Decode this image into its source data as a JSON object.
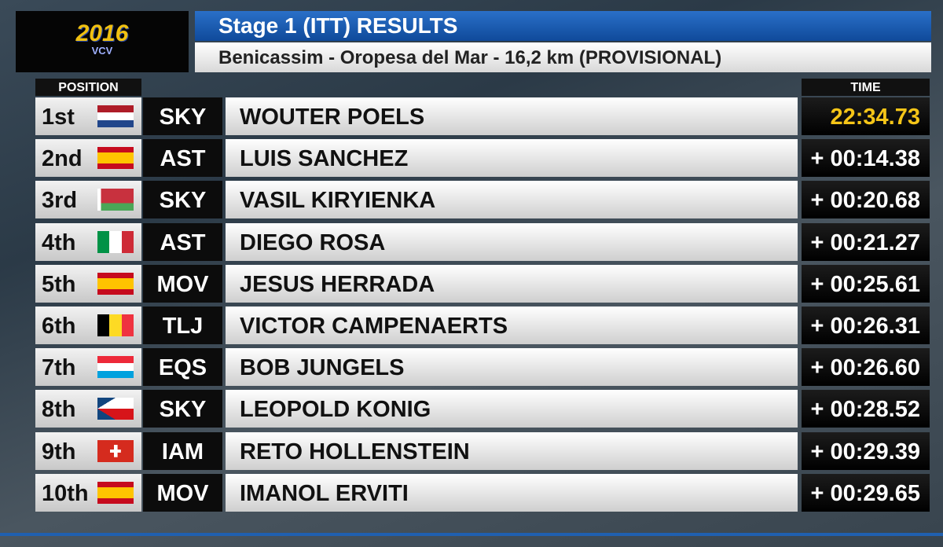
{
  "logo": {
    "year": "2016",
    "name": "VCV"
  },
  "header": {
    "title": "Stage 1 (ITT) RESULTS",
    "subtitle": "Benicassim - Oropesa del Mar - 16,2 km (PROVISIONAL)"
  },
  "table": {
    "headers": {
      "position": "POSITION",
      "time": "TIME"
    },
    "rows": [
      [
        "1st",
        "SKY",
        "WOUTER POELS",
        "22:34.73"
      ],
      [
        "2nd",
        "AST",
        "LUIS SANCHEZ",
        "+ 00:14.38"
      ],
      [
        "3rd",
        "SKY",
        "VASIL KIRYIENKA",
        "+ 00:20.68"
      ],
      [
        "4th",
        "AST",
        "DIEGO ROSA",
        "+ 00:21.27"
      ],
      [
        "5th",
        "MOV",
        "JESUS HERRADA",
        "+ 00:25.61"
      ],
      [
        "6th",
        "TLJ",
        "VICTOR CAMPENAERTS",
        "+ 00:26.31"
      ],
      [
        "7th",
        "EQS",
        "BOB JUNGELS",
        "+ 00:26.60"
      ],
      [
        "8th",
        "SKY",
        "LEOPOLD KONIG",
        "+ 00:28.52"
      ],
      [
        "9th",
        "IAM",
        "RETO HOLLENSTEIN",
        "+ 00:29.39"
      ],
      [
        "10th",
        "MOV",
        "IMANOL ERVITI",
        "+ 00:29.65"
      ]
    ]
  }
}
